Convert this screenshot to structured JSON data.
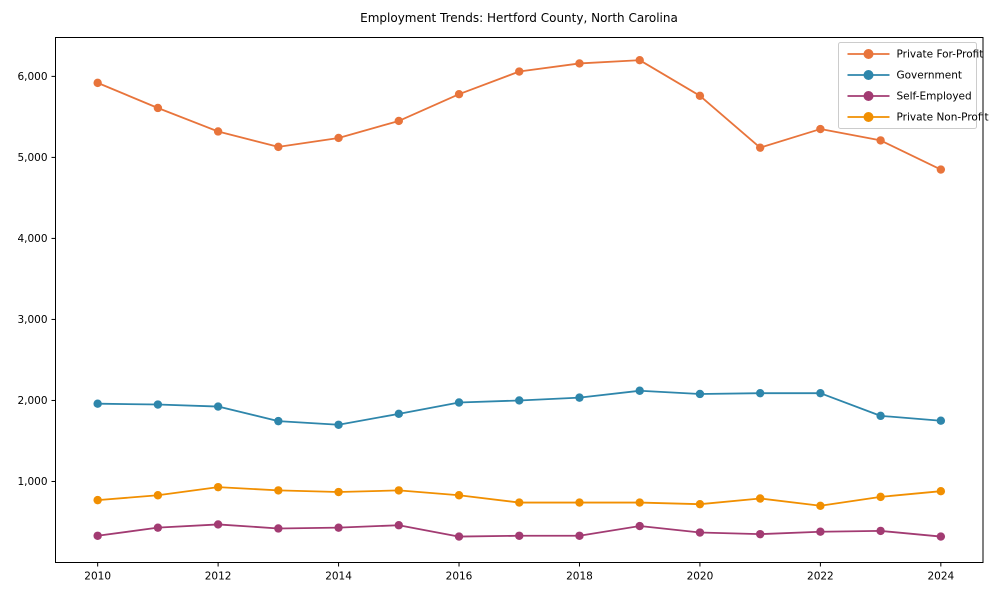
{
  "figure": {
    "background": "#ffffff",
    "frame_color": "#000000",
    "legend_border_color": "#cccccc",
    "legend_background": "#ffffff"
  },
  "chart_data": {
    "type": "line",
    "title": "Employment Trends: Hertford County, North Carolina",
    "xlabel": "",
    "ylabel": "",
    "x": [
      2010,
      2011,
      2012,
      2013,
      2014,
      2015,
      2016,
      2017,
      2018,
      2019,
      2020,
      2021,
      2022,
      2023,
      2024
    ],
    "series": [
      {
        "name": "Private For-Profit",
        "color": "#E8743B",
        "values": [
          5920,
          5610,
          5320,
          5130,
          5240,
          5450,
          5780,
          6060,
          6160,
          6200,
          5760,
          5120,
          5350,
          5210,
          4850
        ]
      },
      {
        "name": "Government",
        "color": "#2E86AB",
        "values": [
          1960,
          1950,
          1925,
          1745,
          1700,
          1835,
          1975,
          2000,
          2035,
          2120,
          2080,
          2090,
          2090,
          1810,
          1750
        ]
      },
      {
        "name": "Self-Employed",
        "color": "#A23B72",
        "values": [
          330,
          430,
          470,
          420,
          430,
          460,
          320,
          330,
          330,
          450,
          370,
          350,
          380,
          390,
          320
        ]
      },
      {
        "name": "Private Non-Profit",
        "color": "#F18F01",
        "values": [
          770,
          830,
          930,
          890,
          870,
          890,
          830,
          740,
          740,
          740,
          720,
          790,
          700,
          810,
          880
        ]
      }
    ],
    "xticks": [
      2010,
      2012,
      2014,
      2016,
      2018,
      2020,
      2022,
      2024
    ],
    "xtick_labels": [
      "2010",
      "2012",
      "2014",
      "2016",
      "2018",
      "2020",
      "2022",
      "2024"
    ],
    "yticks": [
      1000,
      2000,
      3000,
      4000,
      5000,
      6000
    ],
    "ytick_labels": [
      "1,000",
      "2,000",
      "3,000",
      "4,000",
      "5,000",
      "6,000"
    ],
    "xlim": [
      2009.3,
      2024.7
    ],
    "ylim": [
      0,
      6480
    ],
    "grid": false,
    "legend_position": "upper right",
    "marker": "circle",
    "marker_size": 4.2,
    "line_width": 1.8
  }
}
